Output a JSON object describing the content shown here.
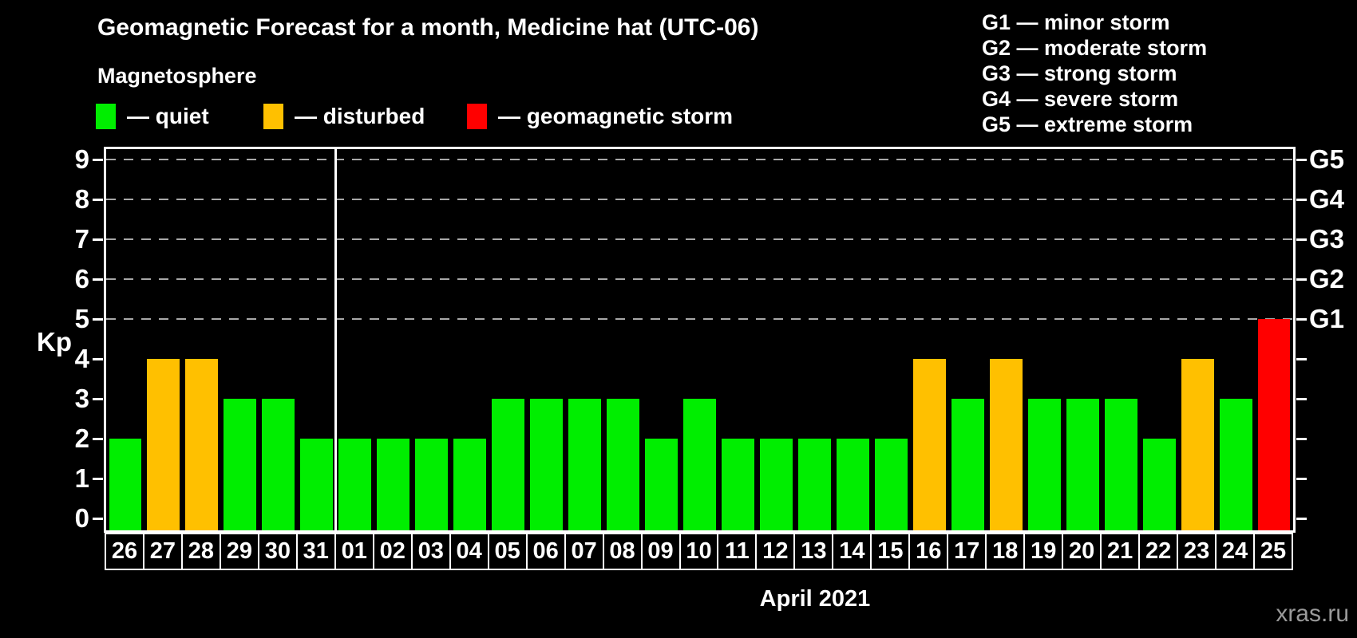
{
  "title": "Geomagnetic Forecast for a month, Medicine hat (UTC-06)",
  "subtitle": "Magnetosphere",
  "status_legend": [
    {
      "key": "quiet",
      "label": "— quiet",
      "color": "#00ee00"
    },
    {
      "key": "disturbed",
      "label": "— disturbed",
      "color": "#ffc000"
    },
    {
      "key": "storm",
      "label": "— geomagnetic storm",
      "color": "#ff0000"
    }
  ],
  "g_legend": [
    "G1 — minor storm",
    "G2 — moderate storm",
    "G3 — strong storm",
    "G4 — severe storm",
    "G5 — extreme storm"
  ],
  "watermark": "xras.ru",
  "chart_data": {
    "type": "bar",
    "title": "Geomagnetic Forecast for a month, Medicine hat (UTC-06)",
    "ylabel": "Kp",
    "xlabel": "April 2021",
    "ylim": [
      0,
      9.3
    ],
    "yticks": [
      0,
      1,
      2,
      3,
      4,
      5,
      6,
      7,
      8,
      9
    ],
    "gridlines_at_kp": [
      5,
      6,
      7,
      8,
      9
    ],
    "grid": "dashed horizontal at storm levels only",
    "legend_position": "top",
    "right_axis": [
      {
        "kp": 5,
        "label": "G1"
      },
      {
        "kp": 6,
        "label": "G2"
      },
      {
        "kp": 7,
        "label": "G3"
      },
      {
        "kp": 8,
        "label": "G4"
      },
      {
        "kp": 9,
        "label": "G5"
      }
    ],
    "month_divider_before_index": 6,
    "categories": [
      "26",
      "27",
      "28",
      "29",
      "30",
      "31",
      "01",
      "02",
      "03",
      "04",
      "05",
      "06",
      "07",
      "08",
      "09",
      "10",
      "11",
      "12",
      "13",
      "14",
      "15",
      "16",
      "17",
      "18",
      "19",
      "20",
      "21",
      "22",
      "23",
      "24",
      "25"
    ],
    "values": [
      2,
      4,
      4,
      3,
      3,
      2,
      2,
      2,
      2,
      2,
      3,
      3,
      3,
      3,
      2,
      3,
      2,
      2,
      2,
      2,
      2,
      4,
      3,
      4,
      3,
      3,
      3,
      2,
      4,
      3,
      5
    ],
    "statuses": [
      "quiet",
      "disturbed",
      "disturbed",
      "quiet",
      "quiet",
      "quiet",
      "quiet",
      "quiet",
      "quiet",
      "quiet",
      "quiet",
      "quiet",
      "quiet",
      "quiet",
      "quiet",
      "quiet",
      "quiet",
      "quiet",
      "quiet",
      "quiet",
      "quiet",
      "disturbed",
      "quiet",
      "disturbed",
      "quiet",
      "quiet",
      "quiet",
      "quiet",
      "disturbed",
      "quiet",
      "storm"
    ]
  },
  "colors": {
    "background": "#000000",
    "text": "#ffffff",
    "quiet": "#00ee00",
    "disturbed": "#ffc000",
    "storm": "#ff0000",
    "gridline": "#a8a8a8",
    "axis": "#ffffff",
    "watermark": "#9a9a9a"
  }
}
